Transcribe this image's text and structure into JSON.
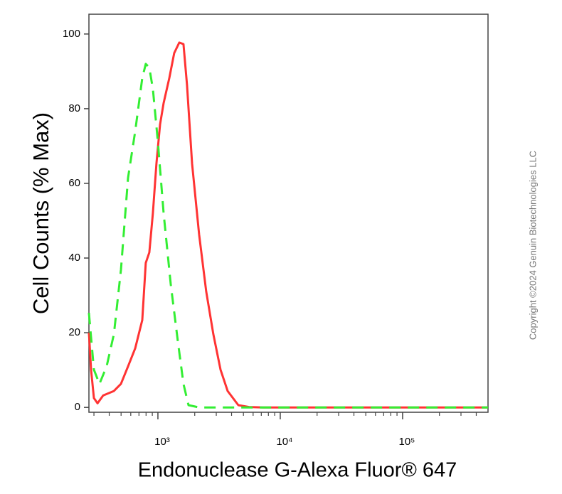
{
  "chart_data": {
    "type": "line",
    "x_label": "Endonuclease G-Alexa Fluor® 647",
    "y_label": "Cell Counts (% Max)",
    "watermark": "Copyright ©2024 Genuin Biotechnologies LLC",
    "xscale": "log",
    "xlim": [
      273,
      499000
    ],
    "ylim": [
      -1.3,
      105.3
    ],
    "xticks": [
      {
        "value": 1000,
        "label": "10³"
      },
      {
        "value": 10000,
        "label": "10⁴"
      },
      {
        "value": 100000,
        "label": "10⁵"
      }
    ],
    "yticks": [
      0,
      20,
      40,
      60,
      80,
      100
    ],
    "series": [
      {
        "color": "#ff3333",
        "line_style": "solid",
        "x": [
          273,
          284,
          300,
          321,
          357,
          437,
          499,
          570,
          652,
          745,
          796,
          851,
          910,
          973,
          1041,
          1113,
          1240,
          1360,
          1494,
          1618,
          1730,
          1901,
          2173,
          2484,
          2840,
          3248,
          3714,
          4540,
          5550,
          7250,
          21200,
          80700,
          499000
        ],
        "values": [
          20,
          10.1,
          2.5,
          1.1,
          3.2,
          4.4,
          6.3,
          11,
          15.8,
          23.4,
          38.7,
          41.5,
          52,
          65.3,
          75.8,
          81.5,
          88.2,
          94.9,
          97.7,
          97.3,
          86.3,
          65.3,
          46.3,
          31,
          19.6,
          10.1,
          4.4,
          0.6,
          0.1,
          0,
          0,
          0,
          0
        ]
      },
      {
        "color": "#33ee33",
        "line_style": "dashed",
        "x": [
          273,
          300,
          333,
          381,
          437,
          499,
          570,
          652,
          745,
          796,
          851,
          910,
          1000,
          1113,
          1273,
          1455,
          1618,
          1778,
          2173,
          499000
        ],
        "values": [
          25.3,
          10.1,
          6.3,
          11,
          19.6,
          36.8,
          61.5,
          73.9,
          88.2,
          92,
          91,
          85.3,
          71,
          52,
          33,
          17.7,
          6.3,
          0.6,
          0,
          0
        ]
      }
    ]
  }
}
